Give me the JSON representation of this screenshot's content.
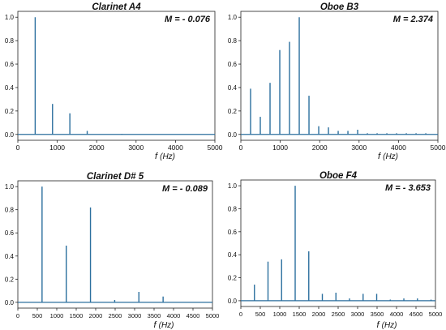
{
  "colors": {
    "line": "#2b6f9e",
    "axis": "#222222",
    "text": "#111111"
  },
  "xlabel_italic": "f",
  "xlabel_unit": "(Hz)",
  "chart_data": [
    {
      "type": "line",
      "title": "Clarinet A4",
      "annotation": "M = - 0.076",
      "xlim": [
        0,
        5000
      ],
      "ylim": [
        -0.05,
        1.05
      ],
      "xticks": [
        0,
        1000,
        2000,
        3000,
        4000,
        5000
      ],
      "yticks": [
        0.0,
        0.2,
        0.4,
        0.6,
        0.8,
        1.0
      ],
      "show_xlabel": true,
      "peaks": [
        [
          440,
          1.0
        ],
        [
          880,
          0.26
        ],
        [
          1320,
          0.18
        ],
        [
          1760,
          0.03
        ],
        [
          2640,
          0.005
        ]
      ]
    },
    {
      "type": "line",
      "title": "Oboe B3",
      "annotation": "M = 2.374",
      "xlim": [
        0,
        5000
      ],
      "ylim": [
        -0.05,
        1.05
      ],
      "xticks": [
        0,
        1000,
        2000,
        3000,
        4000,
        5000
      ],
      "yticks": [
        0.0,
        0.2,
        0.4,
        0.6,
        0.8,
        1.0
      ],
      "show_xlabel": true,
      "peaks": [
        [
          247,
          0.39
        ],
        [
          494,
          0.15
        ],
        [
          741,
          0.44
        ],
        [
          988,
          0.72
        ],
        [
          1235,
          0.79
        ],
        [
          1482,
          1.0
        ],
        [
          1729,
          0.33
        ],
        [
          1976,
          0.07
        ],
        [
          2223,
          0.06
        ],
        [
          2470,
          0.03
        ],
        [
          2717,
          0.03
        ],
        [
          2964,
          0.04
        ],
        [
          3211,
          0.01
        ],
        [
          3458,
          0.01
        ],
        [
          3705,
          0.01
        ],
        [
          3952,
          0.01
        ],
        [
          4199,
          0.01
        ],
        [
          4446,
          0.01
        ],
        [
          4693,
          0.01
        ]
      ]
    },
    {
      "type": "line",
      "title": "Clarinet D# 5",
      "annotation": "M = - 0.089",
      "xlim": [
        0,
        5000
      ],
      "ylim": [
        -0.05,
        1.05
      ],
      "xticks": [
        0,
        500,
        1000,
        1500,
        2000,
        2500,
        3000,
        3500,
        4000,
        4500,
        5000
      ],
      "yticks": [
        0.0,
        0.2,
        0.4,
        0.6,
        0.8,
        1.0
      ],
      "show_xlabel": true,
      "peaks": [
        [
          622,
          1.0
        ],
        [
          1244,
          0.49
        ],
        [
          1866,
          0.82
        ],
        [
          2488,
          0.02
        ],
        [
          3110,
          0.09
        ],
        [
          3732,
          0.05
        ]
      ]
    },
    {
      "type": "line",
      "title": "Oboe F4",
      "annotation": "M = - 3.653",
      "xlim": [
        0,
        5000
      ],
      "ylim": [
        -0.05,
        1.05
      ],
      "xticks": [
        0,
        500,
        1000,
        1500,
        2000,
        2500,
        3000,
        3500,
        4000,
        4500,
        5000
      ],
      "yticks": [
        0.0,
        0.2,
        0.4,
        0.6,
        0.8,
        1.0
      ],
      "show_xlabel": true,
      "peaks": [
        [
          349,
          0.14
        ],
        [
          698,
          0.34
        ],
        [
          1047,
          0.36
        ],
        [
          1396,
          1.0
        ],
        [
          1745,
          0.43
        ],
        [
          2094,
          0.06
        ],
        [
          2443,
          0.07
        ],
        [
          2792,
          0.02
        ],
        [
          3141,
          0.06
        ],
        [
          3490,
          0.06
        ],
        [
          3839,
          0.01
        ],
        [
          4188,
          0.02
        ],
        [
          4537,
          0.02
        ],
        [
          4886,
          0.01
        ]
      ]
    }
  ]
}
